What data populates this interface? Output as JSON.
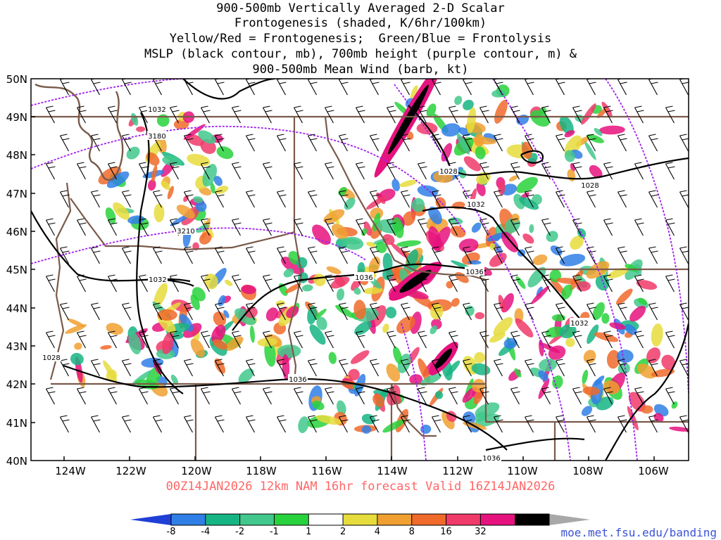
{
  "title": {
    "line1": "900-500mb Vertically Averaged 2-D Scalar",
    "line2": "Frontogenesis (shaded, K/6hr/100km)",
    "line3": "Yellow/Red = Frontogenesis;  Green/Blue = Frontolysis",
    "line4": "MSLP (black contour, mb), 700mb height (purple contour, m) &",
    "line5": "900-500mb Mean Wind (barb, kt)"
  },
  "axes": {
    "lat_labels": [
      "50N",
      "49N",
      "48N",
      "47N",
      "46N",
      "45N",
      "44N",
      "43N",
      "42N",
      "41N",
      "40N"
    ],
    "lon_labels": [
      "124W",
      "122W",
      "120W",
      "118W",
      "116W",
      "114W",
      "112W",
      "110W",
      "108W",
      "106W"
    ],
    "lat_range": [
      40,
      50
    ],
    "lon_range": [
      -125,
      -105
    ]
  },
  "contour_labels": {
    "mslp": [
      "1032",
      "1028",
      "1032",
      "1036",
      "1036",
      "1032",
      "1028",
      "1036",
      "1032",
      "1028",
      "1036"
    ],
    "height": [
      "3180",
      "3210"
    ]
  },
  "colorbar": {
    "labels": [
      "-8",
      "-4",
      "-2",
      "-1",
      "1",
      "2",
      "4",
      "8",
      "16",
      "32"
    ],
    "colors": [
      "#1f3fd6",
      "#2f7fe6",
      "#16b482",
      "#42c88c",
      "#28d23c",
      "#ffffff",
      "#e6dc3c",
      "#f0a030",
      "#f06a2a",
      "#f03a6a",
      "#e6127e",
      "#000000",
      "#a8a8a8"
    ]
  },
  "footer": {
    "valid": "00Z14JAN2026 12km NAM 16hr forecast Valid 16Z14JAN2026",
    "credit": "moe.met.fsu.edu/banding"
  },
  "colors": {
    "state_border": "#7a5a4a",
    "height_contour": "#a020f0",
    "mslp_contour": "#000000",
    "valid_text": "#ff6666",
    "credit_text": "#3b52d6"
  }
}
